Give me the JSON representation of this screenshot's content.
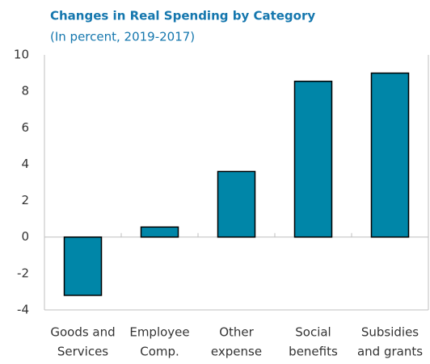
{
  "chart_data": {
    "type": "bar",
    "title": "Changes in Real Spending by Category",
    "subtitle": "(In percent, 2019-2017)",
    "categories": [
      [
        "Goods and",
        "Services"
      ],
      [
        "Employee",
        "Comp."
      ],
      [
        "Other",
        "expense"
      ],
      [
        "Social",
        "benefits"
      ],
      [
        "Subsidies",
        "and grants"
      ]
    ],
    "values": [
      -3.2,
      0.55,
      3.6,
      8.55,
      9.0
    ],
    "color": "#0086a8",
    "ylim": [
      -4,
      10
    ],
    "yticks": [
      -4,
      -2,
      0,
      2,
      4,
      6,
      8,
      10
    ],
    "grid": false
  }
}
